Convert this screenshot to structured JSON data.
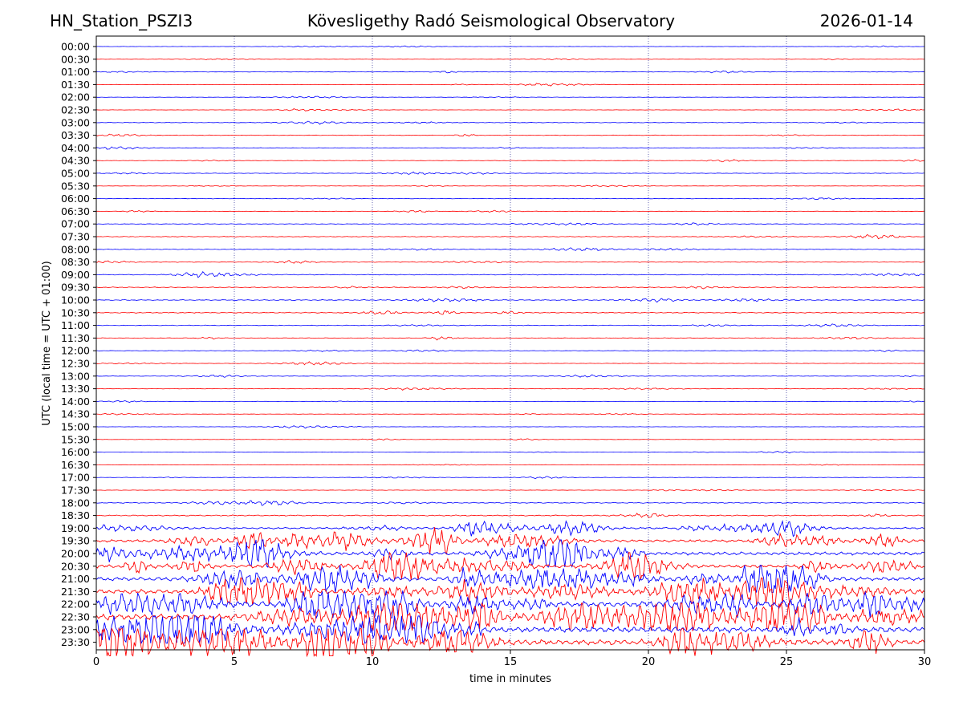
{
  "header": {
    "station": "HN_Station_PSZI3",
    "observatory": "Kövesligethy Radó Seismological Observatory",
    "date": "2026-01-14"
  },
  "chart_data": {
    "type": "line",
    "xlabel": "time in minutes",
    "ylabel": "UTC (local time = UTC + 01:00)",
    "xlim": [
      0,
      30
    ],
    "x_ticks": [
      "0",
      "5",
      "10",
      "15",
      "20",
      "25",
      "30"
    ],
    "vertical_grid_at": [
      5,
      10,
      15,
      20,
      25
    ],
    "grid": "dotted vertical",
    "row_labels": [
      "00:00",
      "00:30",
      "01:00",
      "01:30",
      "02:00",
      "02:30",
      "03:00",
      "03:30",
      "04:00",
      "04:30",
      "05:00",
      "05:30",
      "06:00",
      "06:30",
      "07:00",
      "07:30",
      "08:00",
      "08:30",
      "09:00",
      "09:30",
      "10:00",
      "10:30",
      "11:00",
      "11:30",
      "12:00",
      "12:30",
      "13:00",
      "13:30",
      "14:00",
      "14:30",
      "15:00",
      "15:30",
      "16:00",
      "16:30",
      "17:00",
      "17:30",
      "18:00",
      "18:30",
      "19:00",
      "19:30",
      "20:00",
      "20:30",
      "21:00",
      "21:30",
      "22:00",
      "22:30",
      "23:00",
      "23:30"
    ],
    "trace_colors": [
      "#0000ff",
      "#ff0000"
    ],
    "relative_amplitude": [
      0.3,
      0.3,
      0.4,
      0.3,
      0.3,
      0.3,
      0.5,
      0.5,
      0.5,
      0.4,
      0.5,
      0.3,
      0.4,
      0.4,
      0.5,
      0.6,
      0.6,
      0.7,
      0.7,
      0.8,
      0.8,
      0.8,
      0.6,
      0.6,
      0.4,
      0.4,
      0.4,
      0.4,
      0.3,
      0.3,
      0.3,
      0.3,
      0.3,
      0.3,
      0.4,
      0.4,
      0.8,
      1.0,
      1.5,
      2.5,
      3.0,
      3.0,
      3.5,
      4.0,
      5.0,
      5.5,
      5.5,
      5.0
    ]
  }
}
